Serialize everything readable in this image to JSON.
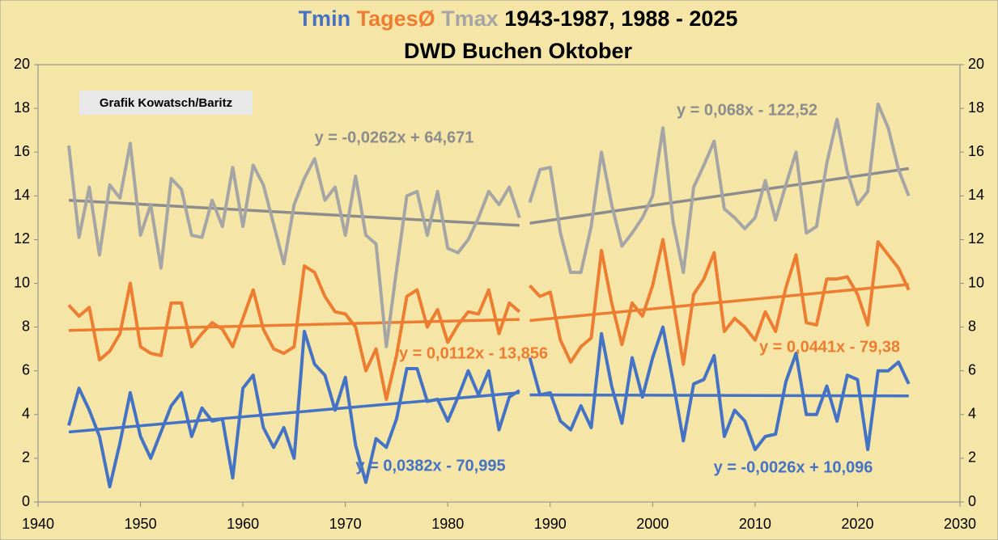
{
  "chart_data": {
    "type": "line",
    "title": "1943-1987, 1988 - 2025",
    "subtitle": "DWD Buchen Oktober",
    "annotation": "Grafik Kowatsch/Baritz",
    "xlim": [
      1940,
      2030
    ],
    "xticks": [
      1940,
      1950,
      1960,
      1970,
      1980,
      1990,
      2000,
      2010,
      2020,
      2030
    ],
    "ylim": [
      0,
      20
    ],
    "yticks": [
      0,
      2,
      4,
      6,
      8,
      10,
      12,
      14,
      16,
      18,
      20
    ],
    "x": [
      1943,
      1944,
      1945,
      1946,
      1947,
      1948,
      1949,
      1950,
      1951,
      1952,
      1953,
      1954,
      1955,
      1956,
      1957,
      1958,
      1959,
      1960,
      1961,
      1962,
      1963,
      1964,
      1965,
      1966,
      1967,
      1968,
      1969,
      1970,
      1971,
      1972,
      1973,
      1974,
      1975,
      1976,
      1977,
      1978,
      1979,
      1980,
      1981,
      1982,
      1983,
      1984,
      1985,
      1986,
      1987,
      null,
      1988,
      1989,
      1990,
      1991,
      1992,
      1993,
      1994,
      1995,
      1996,
      1997,
      1998,
      1999,
      2000,
      2001,
      2002,
      2003,
      2004,
      2005,
      2006,
      2007,
      2008,
      2009,
      2010,
      2011,
      2012,
      2013,
      2014,
      2015,
      2016,
      2017,
      2018,
      2019,
      2020,
      2021,
      2022,
      2023,
      2024,
      2025
    ],
    "series": [
      {
        "name": "Tmin",
        "color": "#4472c4",
        "values": [
          3.5,
          5.2,
          4.2,
          3.0,
          0.7,
          2.7,
          5.0,
          3.0,
          2.0,
          3.2,
          4.4,
          5.0,
          3.0,
          4.3,
          3.7,
          3.8,
          1.1,
          5.2,
          5.8,
          3.4,
          2.5,
          3.4,
          2.0,
          7.8,
          6.3,
          5.8,
          4.2,
          5.7,
          2.6,
          0.9,
          2.9,
          2.5,
          3.8,
          6.1,
          6.1,
          4.6,
          4.7,
          3.7,
          4.8,
          6.0,
          4.9,
          6.0,
          3.3,
          4.8,
          5.1,
          null,
          6.6,
          4.9,
          5.0,
          3.7,
          3.3,
          4.4,
          3.4,
          7.7,
          5.3,
          3.6,
          6.6,
          4.8,
          6.6,
          8.0,
          5.5,
          2.8,
          5.4,
          5.6,
          6.7,
          3.0,
          4.2,
          3.7,
          2.4,
          3.0,
          3.1,
          5.5,
          6.8,
          4.0,
          4.0,
          5.3,
          3.7,
          5.8,
          5.6,
          2.4,
          6.0,
          6.0,
          6.4,
          5.4
        ]
      },
      {
        "name": "TagesØ",
        "color": "#ed7d31",
        "values": [
          9.0,
          8.5,
          8.9,
          6.5,
          6.9,
          7.7,
          10.0,
          7.1,
          6.8,
          6.7,
          9.1,
          9.1,
          7.1,
          7.7,
          8.2,
          7.9,
          7.1,
          8.4,
          9.7,
          7.9,
          7.0,
          6.8,
          7.1,
          10.8,
          10.5,
          9.4,
          8.7,
          8.6,
          8.0,
          6.0,
          7.0,
          4.7,
          6.7,
          9.4,
          9.7,
          8.0,
          8.8,
          7.3,
          8.1,
          8.7,
          8.6,
          9.7,
          7.7,
          9.1,
          8.7,
          null,
          9.9,
          9.4,
          9.6,
          7.4,
          6.4,
          7.1,
          7.5,
          11.5,
          9.1,
          7.2,
          9.1,
          8.5,
          9.9,
          12.0,
          9.2,
          6.3,
          9.5,
          10.2,
          11.4,
          7.8,
          8.4,
          8.0,
          7.4,
          8.7,
          7.8,
          9.8,
          11.3,
          8.2,
          8.1,
          10.2,
          10.2,
          10.3,
          9.5,
          8.1,
          11.9,
          11.3,
          10.7,
          9.7
        ]
      },
      {
        "name": "Tmax",
        "color": "#a5a5a5",
        "values": [
          16.3,
          12.1,
          14.4,
          11.3,
          14.5,
          13.9,
          16.4,
          12.2,
          13.6,
          10.7,
          14.8,
          14.3,
          12.2,
          12.1,
          13.8,
          12.6,
          15.3,
          12.6,
          15.4,
          14.5,
          12.7,
          10.9,
          13.6,
          14.8,
          15.7,
          13.8,
          14.4,
          12.2,
          14.9,
          12.2,
          11.8,
          7.1,
          10.6,
          14.0,
          14.2,
          12.2,
          14.2,
          11.6,
          11.4,
          12.0,
          13.0,
          14.2,
          13.6,
          14.4,
          13.0,
          null,
          13.7,
          15.2,
          15.3,
          12.3,
          10.5,
          10.5,
          12.6,
          16.0,
          13.6,
          11.7,
          12.3,
          13.0,
          14.0,
          17.1,
          12.8,
          10.5,
          14.4,
          15.4,
          16.5,
          13.4,
          13.0,
          12.5,
          13.0,
          14.7,
          12.9,
          14.5,
          16.0,
          12.3,
          12.6,
          15.5,
          17.5,
          15.1,
          13.6,
          14.2,
          18.2,
          17.1,
          15.2,
          14.0
        ]
      }
    ],
    "trendlines": [
      {
        "label": "y = 0,0382x - 70,995",
        "color": "#4472c4",
        "x": [
          1943,
          1987
        ],
        "values": [
          3.2,
          5.0
        ]
      },
      {
        "label": "y = -0,0026x + 10,096",
        "color": "#4472c4",
        "x": [
          1988,
          2025
        ],
        "values": [
          4.9,
          4.85
        ]
      },
      {
        "label": "y = 0,0112x - 13,856",
        "color": "#ed7d31",
        "x": [
          1943,
          1987
        ],
        "values": [
          7.85,
          8.35
        ]
      },
      {
        "label": "y = 0,0441x - 79,38",
        "color": "#ed7d31",
        "x": [
          1988,
          2025
        ],
        "values": [
          8.3,
          9.95
        ]
      },
      {
        "label": "y = -0,0262x + 64,671",
        "color": "#8c8c8c",
        "x": [
          1943,
          1987
        ],
        "values": [
          13.8,
          12.65
        ]
      },
      {
        "label": "y = 0,068x - 122,52",
        "color": "#8c8c8c",
        "x": [
          1988,
          2025
        ],
        "values": [
          12.75,
          15.25
        ]
      }
    ]
  }
}
